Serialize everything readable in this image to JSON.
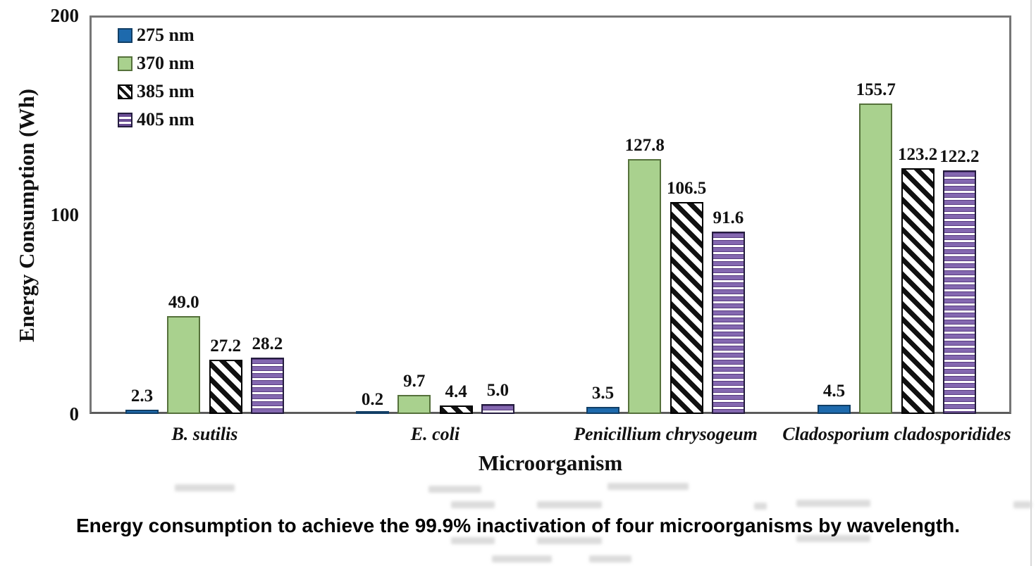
{
  "figure": {
    "caption": "Energy consumption to achieve the 99.9% inactivation of four microorganisms by wavelength."
  },
  "chart_data": {
    "type": "bar",
    "title": "",
    "xlabel": "Microorganism",
    "ylabel": "Energy Consumption (Wh)",
    "ylim": [
      0,
      200
    ],
    "yticks": [
      "0",
      "100",
      "200"
    ],
    "grid": false,
    "legend_position": "top-left-inside",
    "categories": [
      "B. sutilis",
      "E. coli",
      "Penicillium chrysogeum",
      "Cladosporium cladosporidides"
    ],
    "series": [
      {
        "name": "275 nm",
        "pattern": "solid-blue",
        "color": "#1e6aad",
        "values": [
          2.3,
          0.2,
          3.5,
          4.5
        ],
        "labels": [
          "2.3",
          "0.2",
          "3.5",
          "4.5"
        ]
      },
      {
        "name": "370 nm",
        "pattern": "solid-green",
        "color": "#a9d18e",
        "values": [
          49.0,
          9.7,
          127.8,
          155.7
        ],
        "labels": [
          "49.0",
          "9.7",
          "127.8",
          "155.7"
        ]
      },
      {
        "name": "385 nm",
        "pattern": "diagonal-hatch",
        "color": "#000000",
        "values": [
          27.2,
          4.4,
          106.5,
          123.2
        ],
        "labels": [
          "27.2",
          "4.4",
          "106.5",
          "123.2"
        ]
      },
      {
        "name": "405 nm",
        "pattern": "horizontal-stripes",
        "color": "#7e5fa5",
        "values": [
          28.2,
          5.0,
          91.6,
          122.2
        ],
        "labels": [
          "28.2",
          "5.0",
          "91.6",
          "122.2"
        ]
      }
    ]
  }
}
